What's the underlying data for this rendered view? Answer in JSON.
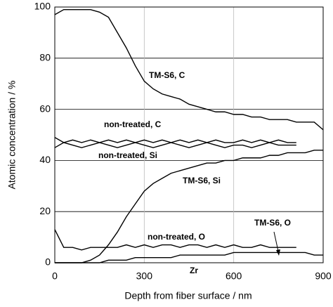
{
  "chart_data": {
    "type": "line",
    "xlabel": "Depth from fiber surface / nm",
    "ylabel": "Atomic concentration / %",
    "annotations": [
      "Zr"
    ],
    "x": [
      0,
      30,
      60,
      90,
      120,
      150,
      180,
      210,
      240,
      270,
      300,
      330,
      360,
      390,
      420,
      450,
      480,
      510,
      540,
      570,
      600,
      630,
      660,
      690,
      720,
      750,
      780,
      810,
      840,
      870,
      900
    ],
    "series": [
      {
        "name": "TM-S6, C",
        "color": "#000000",
        "values": [
          97,
          99,
          99,
          99,
          99,
          98,
          96,
          90,
          84,
          77,
          71,
          68,
          66,
          65,
          64,
          62,
          61,
          60,
          59,
          59,
          58,
          58,
          57,
          57,
          56,
          56,
          56,
          55,
          55,
          55,
          52
        ]
      },
      {
        "name": "non-treated, C",
        "color": "#000000",
        "values": [
          49,
          47,
          48,
          47,
          48,
          47,
          48,
          47,
          48,
          47,
          48,
          47,
          48,
          47,
          48,
          47,
          48,
          47,
          48,
          47,
          47,
          48,
          47,
          48,
          47,
          48,
          47,
          47,
          null,
          null,
          null
        ]
      },
      {
        "name": "non-treated, Si",
        "color": "#000000",
        "values": [
          45,
          47,
          46,
          45,
          46,
          47,
          46,
          45,
          46,
          47,
          46,
          45,
          46,
          47,
          46,
          45,
          46,
          47,
          46,
          45,
          46,
          46,
          45,
          46,
          47,
          46,
          46,
          46,
          null,
          null,
          null
        ]
      },
      {
        "name": "TM-S6, Si",
        "color": "#000000",
        "values": [
          0,
          0,
          0,
          0,
          1,
          3,
          7,
          12,
          18,
          23,
          28,
          31,
          33,
          35,
          36,
          37,
          38,
          39,
          39,
          40,
          40,
          41,
          41,
          41,
          42,
          42,
          43,
          43,
          43,
          44,
          44
        ]
      },
      {
        "name": "non-treated, O",
        "color": "#000000",
        "values": [
          13,
          6,
          6,
          5,
          6,
          6,
          6,
          6,
          7,
          6,
          7,
          6,
          7,
          7,
          6,
          7,
          7,
          6,
          7,
          6,
          7,
          6,
          6,
          7,
          6,
          6,
          6,
          6,
          null,
          null,
          null
        ]
      },
      {
        "name": "TM-S6, O",
        "color": "#000000",
        "values": [
          0,
          0,
          0,
          0,
          0,
          0,
          1,
          1,
          1,
          2,
          2,
          2,
          2,
          2,
          3,
          3,
          3,
          3,
          3,
          3,
          4,
          4,
          4,
          4,
          4,
          4,
          4,
          4,
          4,
          3,
          3
        ]
      }
    ],
    "xlim": [
      0,
      900
    ],
    "xticks": [
      0,
      300,
      600,
      900
    ],
    "ylim": [
      0,
      100
    ],
    "yticks": [
      0,
      20,
      40,
      60,
      80,
      100
    ],
    "grid": true
  }
}
